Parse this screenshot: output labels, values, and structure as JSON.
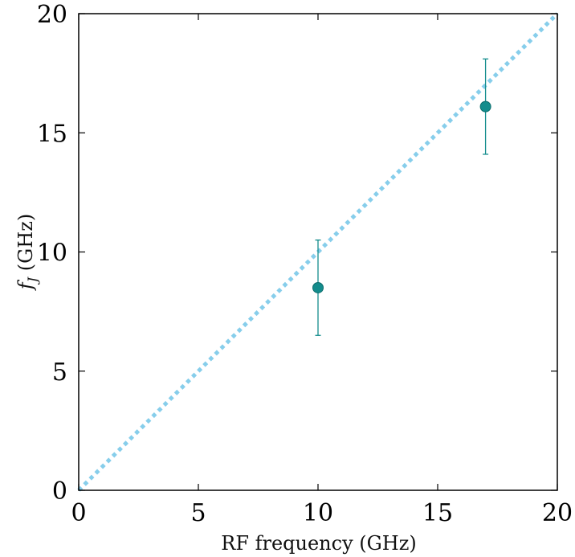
{
  "chart_data": {
    "type": "scatter",
    "title": "",
    "xlabel": "RF frequency (GHz)",
    "ylabel_symbol": "f",
    "ylabel_subscript": "J",
    "ylabel_units": " (GHz)",
    "xlim": [
      0,
      20
    ],
    "ylim": [
      0,
      20
    ],
    "xticks": [
      "0",
      "5",
      "10",
      "15",
      "20"
    ],
    "yticks": [
      "0",
      "5",
      "10",
      "15",
      "20"
    ],
    "grid": false,
    "legend": "none",
    "series": [
      {
        "kind": "points-with-errorbars",
        "color": "#138c8c",
        "points": [
          {
            "x": 10,
            "y": 8.5,
            "yerr": 2.0
          },
          {
            "x": 17,
            "y": 16.1,
            "yerr": 2.0
          }
        ]
      },
      {
        "kind": "reference-line",
        "style": "dotted",
        "color": "#87ceeb",
        "points": [
          {
            "x": 0,
            "y": 0
          },
          {
            "x": 20,
            "y": 20
          }
        ]
      }
    ]
  }
}
